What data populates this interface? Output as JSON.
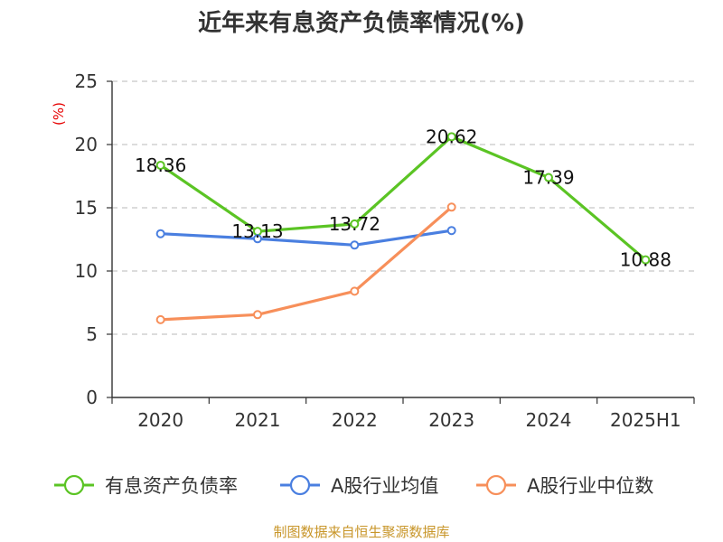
{
  "chart_data": {
    "type": "line",
    "title": "近年来有息资产负债率情况(%)",
    "ylabel": "(%)",
    "ylim": [
      0,
      25
    ],
    "yticks": [
      0,
      5,
      10,
      15,
      20,
      25
    ],
    "grid": true,
    "legend_position": "bottom",
    "categories": [
      "2020",
      "2021",
      "2022",
      "2023",
      "2024",
      "2025H1"
    ],
    "series": [
      {
        "name": "有息资产负债率",
        "color": "#5bc424",
        "values": [
          18.36,
          13.13,
          13.72,
          20.62,
          17.39,
          10.88
        ],
        "labels": [
          "18.36",
          "13.13",
          "13.72",
          "20.62",
          "17.39",
          "10.88"
        ]
      },
      {
        "name": "A股行业均值",
        "color": "#4a7fe0",
        "values": [
          12.95,
          12.55,
          12.05,
          13.2,
          null,
          null
        ]
      },
      {
        "name": "A股行业中位数",
        "color": "#f78f5a",
        "values": [
          6.15,
          6.55,
          8.4,
          15.05,
          null,
          null
        ]
      }
    ],
    "source": "制图数据来自恒生聚源数据库"
  }
}
